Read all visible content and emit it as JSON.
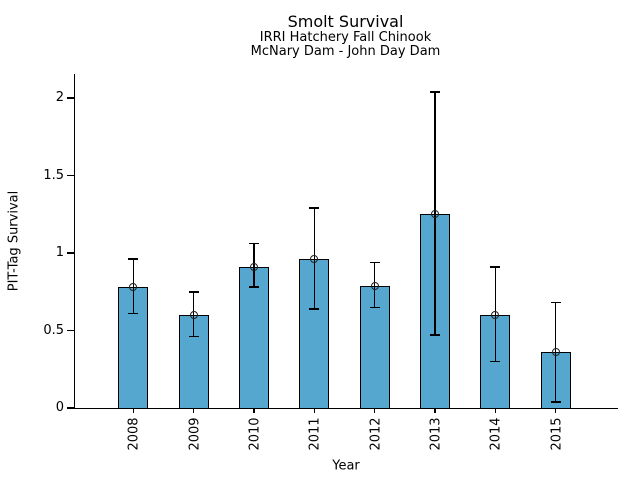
{
  "chart_data": {
    "type": "bar",
    "title": "Smolt Survival",
    "subtitle1": "IRRI Hatchery Fall Chinook",
    "subtitle2": "McNary Dam - John Day Dam",
    "xlabel": "Year",
    "ylabel": "PIT-Tag Survival",
    "categories": [
      "2008",
      "2009",
      "2010",
      "2011",
      "2012",
      "2013",
      "2014",
      "2015"
    ],
    "values": [
      0.78,
      0.6,
      0.91,
      0.96,
      0.79,
      1.25,
      0.6,
      0.36
    ],
    "error_low": [
      0.61,
      0.46,
      0.78,
      0.64,
      0.65,
      0.47,
      0.3,
      0.04
    ],
    "error_high": [
      0.96,
      0.75,
      1.06,
      1.29,
      0.94,
      2.04,
      0.91,
      0.68
    ],
    "ylim": [
      0,
      2.16
    ],
    "yticks": [
      0,
      0.5,
      1,
      1.5,
      2
    ],
    "ytick_labels": [
      "0",
      "0.5",
      "1",
      "1.5",
      "2"
    ],
    "xtick_label_rotation_deg": 90,
    "grid": false,
    "legend": null,
    "bar_color": "#56a7d0",
    "bar_edge_color": "#000000",
    "errorbar_color": "#000000",
    "marker": "open-circle"
  }
}
